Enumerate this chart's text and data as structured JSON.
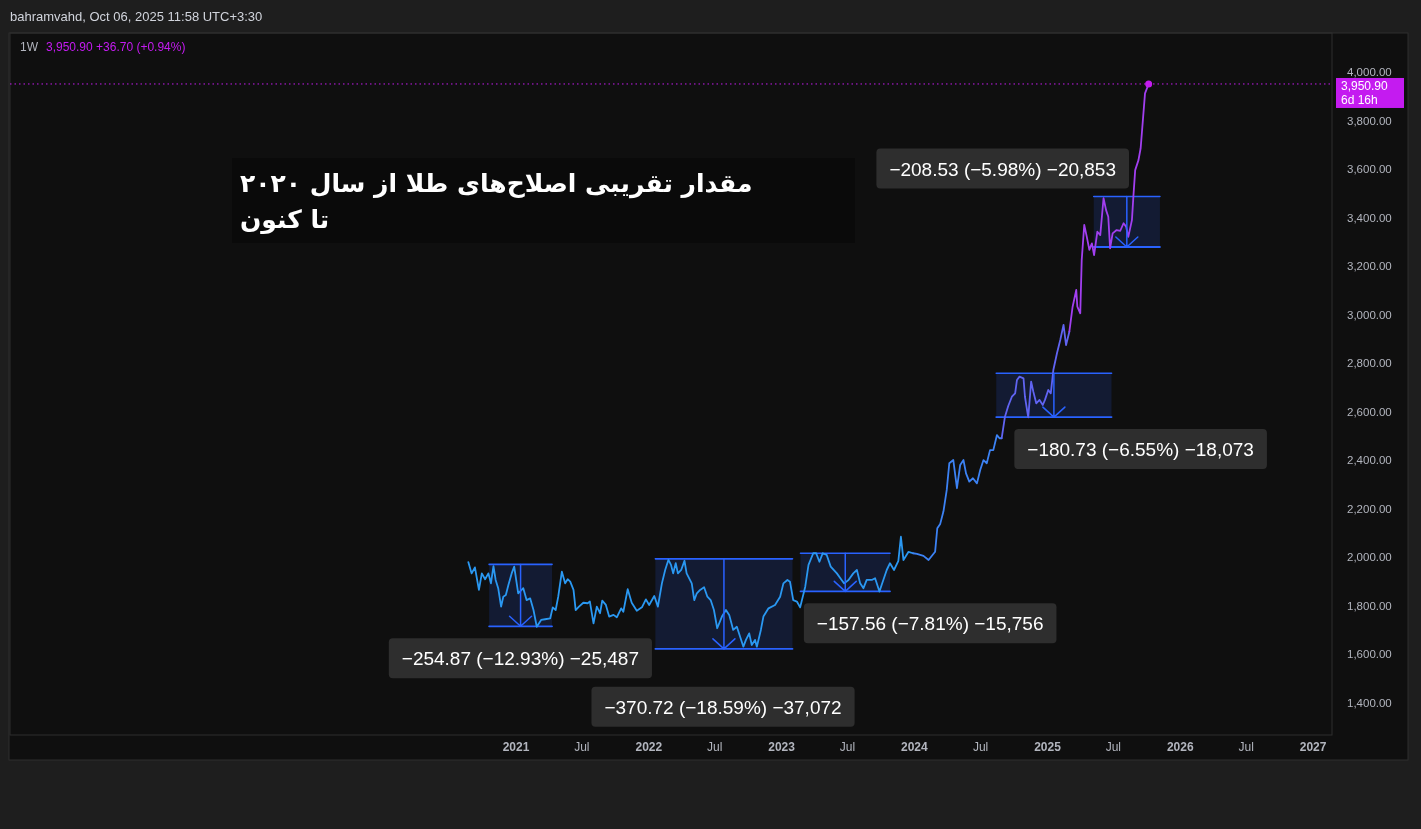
{
  "chart_data": {
    "type": "line",
    "title": "مقدار تقریبی اصلاح‌های طلا از سال ۲۰۲۰ تا کنون",
    "subtitle": "1W",
    "annotations": [
      "bahramvahd, Oct 06, 2025 11:58 UTC+3:30",
      "3,950.90 +36.70 (+0.94%)",
      "6d 16h",
      {
        "text": "−254.87 (−12.93%) −25,487",
        "x": "2021-01-13",
        "y": 1716
      },
      {
        "text": "−370.72 (−18.59%) −37,072",
        "x": "2022-07-24",
        "y": 1623
      },
      {
        "text": "−157.56 (−7.81%) −15,756",
        "x": "2023-06-22",
        "y": 1860
      },
      {
        "text": "−180.73 (−6.55%) −18,073",
        "x": "2025-01-15",
        "y": 2578
      },
      {
        "text": "−208.53 (−5.98%) −20,853",
        "x": "2025-08-02",
        "y": 3487
      }
    ],
    "series": [
      {
        "x": [
          "2020-10-19",
          "2021-04-10"
        ],
        "values": [
          1971,
          1971
        ],
        "lower": [
          1716,
          1716
        ],
        "upper": [
          1971,
          1971
        ],
        "color": "#2962ff"
      },
      {
        "x": [
          "2022-01-19",
          "2023-01-31"
        ],
        "values": [
          1994,
          1994
        ],
        "lower": [
          1623,
          1623
        ],
        "upper": [
          1994,
          1994
        ],
        "color": "#2962ff"
      },
      {
        "x": [
          "2023-02-22",
          "2023-10-26"
        ],
        "values": [
          2017,
          2017
        ],
        "lower": [
          1860,
          1860
        ],
        "upper": [
          2017,
          2017
        ],
        "color": "#2962ff"
      },
      {
        "x": [
          "2024-08-13",
          "2025-06-26"
        ],
        "values": [
          2759,
          2759
        ],
        "lower": [
          2578,
          2578
        ],
        "upper": [
          2759,
          2759
        ],
        "color": "#2962ff"
      },
      {
        "x": [
          "2025-05-08",
          "2025-11-06"
        ],
        "values": [
          3487,
          3487
        ],
        "lower": [
          3279,
          3279
        ],
        "upper": [
          3487,
          3487
        ],
        "color": "#2962ff"
      },
      {
        "x": [
          "2020-10-19",
          "2021-04-10"
        ],
        "values": [
          1716,
          1716
        ],
        "color": "#2962ff"
      },
      {
        "x": [
          "2022-01-19",
          "2023-01-31"
        ],
        "values": [
          1623,
          1623
        ],
        "color": "#2962ff"
      },
      {
        "x": [
          "2023-02-22",
          "2023-10-26"
        ],
        "values": [
          1860,
          1860
        ],
        "color": "#2962ff"
      },
      {
        "x": [
          "2024-08-13",
          "2025-06-26"
        ],
        "values": [
          2578,
          2578
        ],
        "color": "#2962ff"
      },
      {
        "x": [
          "2025-05-08",
          "2025-11-06"
        ],
        "values": [
          3279,
          3279
        ],
        "color": "#2962ff"
      },
      {
        "color": "#2a98f2",
        "x": [
          "2020-08-23",
          "2020-09-01",
          "2020-09-10",
          "2020-09-21",
          "2020-09-29",
          "2020-10-08",
          "2020-10-17",
          "2020-10-24",
          "2020-10-31",
          "2020-11-06",
          "2020-11-13",
          "2020-11-21",
          "2020-11-27",
          "2020-12-04",
          "2020-12-11",
          "2020-12-20",
          "2020-12-27",
          "2021-01-07",
          "2021-01-21",
          "2021-01-30",
          "2021-02-09",
          "2021-02-18",
          "2021-02-27",
          "2021-03-11",
          "2021-03-22",
          "2021-04-05",
          "2021-04-12",
          "2021-04-20",
          "2021-04-27",
          "2021-05-07",
          "2021-05-16",
          "2021-05-23",
          "2021-05-30",
          "2021-06-08",
          "2021-06-14",
          "2021-06-23",
          "2021-07-05",
          "2021-07-17",
          "2021-07-23",
          "2021-08-02",
          "2021-08-11",
          "2021-08-20",
          "2021-08-26",
          "2021-09-05",
          "2021-09-14",
          "2021-09-26",
          "2021-10-05",
          "2021-10-17",
          "2021-10-23",
          "2021-11-04",
          "2021-11-15",
          "2021-11-29",
          "2021-12-13",
          "2021-12-24",
          "2022-01-02",
          "2022-01-16",
          "2022-01-26",
          "2022-02-06",
          "2022-02-15",
          "2022-02-24",
          "2022-03-03",
          "2022-03-09",
          "2022-03-16",
          "2022-03-22",
          "2022-03-31",
          "2022-04-09",
          "2022-04-15",
          "2022-04-29",
          "2022-05-06",
          "2022-05-13",
          "2022-05-22",
          "2022-06-02",
          "2022-06-11",
          "2022-06-20",
          "2022-06-29",
          "2022-07-08",
          "2022-07-21",
          "2022-08-01",
          "2022-08-10",
          "2022-08-21",
          "2022-08-31",
          "2022-09-09",
          "2022-09-18",
          "2022-09-25",
          "2022-10-04",
          "2022-10-11",
          "2022-10-20",
          "2022-10-25",
          "2022-11-05",
          "2022-11-12",
          "2022-11-26",
          "2022-12-14",
          "2022-12-28",
          "2023-01-06",
          "2023-01-17",
          "2023-01-24",
          "2023-02-02",
          "2023-02-12",
          "2023-02-21",
          "2023-03-07",
          "2023-03-16",
          "2023-03-29",
          "2023-04-06",
          "2023-04-15",
          "2023-04-24",
          "2023-05-05",
          "2023-05-16",
          "2023-06-02",
          "2023-06-15",
          "2023-06-22",
          "2023-07-04",
          "2023-07-17",
          "2023-07-27",
          "2023-08-05",
          "2023-08-14",
          "2023-08-23",
          "2023-09-06",
          "2023-09-15",
          "2023-09-27",
          "2023-10-03",
          "2023-10-17",
          "2023-10-26",
          "2023-11-06",
          "2023-11-18",
          "2023-11-25",
          "2023-12-02",
          "2023-12-16",
          "2023-12-28"
        ],
        "values": [
          1980,
          1934,
          1959,
          1866,
          1934,
          1910,
          1934,
          1893,
          1964,
          1907,
          1873,
          1797,
          1838,
          1845,
          1886,
          1934,
          1962,
          1852,
          1873,
          1824,
          1831,
          1783,
          1714,
          1742,
          1745,
          1749,
          1794,
          1783,
          1838,
          1941,
          1893,
          1910,
          1900,
          1866,
          1783,
          1797,
          1813,
          1811,
          1818,
          1728,
          1797,
          1770,
          1822,
          1804,
          1756,
          1763,
          1753,
          1790,
          1776,
          1869,
          1813,
          1780,
          1794,
          1827,
          1804,
          1841,
          1797,
          1893,
          1948,
          1990,
          1969,
          1934,
          1976,
          1934,
          1948,
          1986,
          1934,
          1893,
          1824,
          1852,
          1866,
          1877,
          1838,
          1824,
          1783,
          1708,
          1756,
          1783,
          1763,
          1701,
          1714,
          1673,
          1632,
          1660,
          1687,
          1639,
          1660,
          1632,
          1701,
          1756,
          1790,
          1804,
          1838,
          1893,
          1907,
          1900,
          1824,
          1818,
          1794,
          1879,
          1969,
          2017,
          2017,
          1982,
          2017,
          2010,
          1962,
          1934,
          1907,
          1893,
          1907,
          1934,
          1948,
          1893,
          1873,
          1907,
          1907,
          1914,
          1859,
          1886,
          1948,
          1976,
          1948,
          1986,
          2085,
          1989,
          2023,
          2017
        ]
      },
      {
        "color": "#3c82f4",
        "x": [
          "2023-12-28",
          "2024-01-08",
          "2024-01-26",
          "2024-02-09",
          "2024-02-27",
          "2024-03-04",
          "2024-03-12",
          "2024-03-21",
          "2024-03-30",
          "2024-04-06",
          "2024-04-17",
          "2024-04-27",
          "2024-05-06",
          "2024-05-15",
          "2024-05-22",
          "2024-05-31",
          "2024-06-10",
          "2024-06-21",
          "2024-06-30",
          "2024-07-09",
          "2024-07-18",
          "2024-07-27",
          "2024-08-05",
          "2024-08-15",
          "2024-08-22",
          "2024-08-28"
        ],
        "values": [
          2017,
          2014,
          2006,
          1989,
          2023,
          2120,
          2138,
          2190,
          2278,
          2388,
          2401,
          2285,
          2381,
          2401,
          2346,
          2312,
          2326,
          2305,
          2360,
          2401,
          2388,
          2442,
          2442,
          2504,
          2491,
          2491
        ]
      },
      {
        "color": "#6064f2",
        "x": [
          "2024-08-28",
          "2024-09-06",
          "2024-09-15",
          "2024-09-25",
          "2024-10-04",
          "2024-10-09",
          "2024-10-16",
          "2024-10-27",
          "2024-10-31",
          "2024-11-09",
          "2024-11-17",
          "2024-11-23",
          "2024-12-01",
          "2024-12-10",
          "2024-12-19",
          "2024-12-25",
          "2025-01-03",
          "2025-01-10",
          "2025-01-17",
          "2025-01-27",
          "2025-02-05",
          "2025-02-14",
          "2025-02-21",
          "2025-03-02"
        ],
        "values": [
          2491,
          2580,
          2624,
          2662,
          2676,
          2731,
          2745,
          2738,
          2662,
          2577,
          2724,
          2683,
          2635,
          2649,
          2628,
          2649,
          2690,
          2676,
          2772,
          2841,
          2896,
          2958,
          2875,
          2930
        ]
      },
      {
        "color": "#a23ff0",
        "x": [
          "2025-03-02",
          "2025-03-11",
          "2025-03-21",
          "2025-03-24",
          "2025-04-01",
          "2025-04-05",
          "2025-04-12",
          "2025-04-19",
          "2025-04-26",
          "2025-05-03",
          "2025-05-09",
          "2025-05-18",
          "2025-05-26",
          "2025-06-04",
          "2025-06-11",
          "2025-06-17",
          "2025-06-22",
          "2025-06-29",
          "2025-07-10",
          "2025-07-20",
          "2025-07-29",
          "2025-08-05",
          "2025-08-11",
          "2025-08-21",
          "2025-08-25",
          "2025-08-30",
          "2025-09-08",
          "2025-09-14",
          "2025-09-26",
          "2025-10-06"
        ],
        "values": [
          2930,
          3033,
          3102,
          3033,
          3006,
          3225,
          3370,
          3321,
          3267,
          3294,
          3246,
          3342,
          3328,
          3480,
          3431,
          3404,
          3274,
          3335,
          3349,
          3346,
          3377,
          3363,
          3321,
          3390,
          3486,
          3596,
          3637,
          3686,
          3912,
          3950.9
        ]
      },
      {
        "type": "scatter",
        "marker": "circle",
        "color": "#c41bf0",
        "x": [
          "2025-10-06"
        ],
        "values": [
          3950.9
        ]
      }
    ],
    "xlim": [
      "2017-03-12",
      "2027-02-22"
    ],
    "xticks": [
      {
        "value": "2021-01-01",
        "label": "2021"
      },
      {
        "value": "2021-07-01",
        "label": "Jul"
      },
      {
        "value": "2022-01-01",
        "label": "2022"
      },
      {
        "value": "2022-07-01",
        "label": "Jul"
      },
      {
        "value": "2023-01-01",
        "label": "2023"
      },
      {
        "value": "2023-07-01",
        "label": "Jul"
      },
      {
        "value": "2024-01-01",
        "label": "2024"
      },
      {
        "value": "2024-07-01",
        "label": "Jul"
      },
      {
        "value": "2025-01-01",
        "label": "2025"
      },
      {
        "value": "2025-07-01",
        "label": "Jul"
      },
      {
        "value": "2026-01-01",
        "label": "2026"
      },
      {
        "value": "2026-07-01",
        "label": "Jul"
      },
      {
        "value": "2027-01-01",
        "label": "2027"
      }
    ],
    "ylim": [
      1268,
      4161
    ],
    "yticks": [
      {
        "value": 1400,
        "label": "1,400.00"
      },
      {
        "value": 1600,
        "label": "1,600.00"
      },
      {
        "value": 1800,
        "label": "1,800.00"
      },
      {
        "value": 2000,
        "label": "2,000.00"
      },
      {
        "value": 2200,
        "label": "2,200.00"
      },
      {
        "value": 2400,
        "label": "2,400.00"
      },
      {
        "value": 2600,
        "label": "2,600.00"
      },
      {
        "value": 2800,
        "label": "2,800.00"
      },
      {
        "value": 3000,
        "label": "3,000.00"
      },
      {
        "value": 3200,
        "label": "3,200.00"
      },
      {
        "value": 3400,
        "label": "3,400.00"
      },
      {
        "value": 3600,
        "label": "3,600.00"
      },
      {
        "value": 3800,
        "label": "3,800.00"
      },
      {
        "value": 4000,
        "label": "4,000.00"
      }
    ],
    "ref_lines": [
      {
        "axis": "y",
        "value": 3950.9,
        "label": "3,950.90",
        "color": "#c41bf0",
        "line_style": "dotted"
      }
    ]
  }
}
